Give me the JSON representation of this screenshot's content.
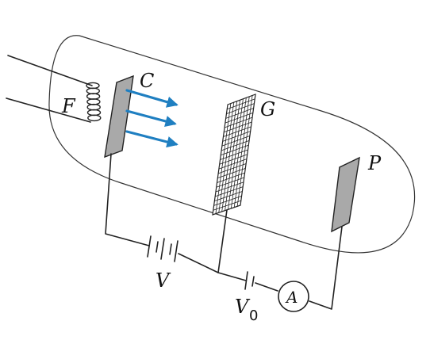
{
  "labels": {
    "filament": "F",
    "cathode": "C",
    "grid": "G",
    "plate": "P",
    "battery_main": "V",
    "battery_retard": "V",
    "battery_retard_subscript": "0",
    "ammeter": "A"
  },
  "colors": {
    "arrow": "#1f7fc1",
    "plate_fill": "#a9a9a9",
    "line": "#222222"
  },
  "icons": {
    "electron_beam": "arrow-right-icon",
    "ammeter": "ammeter-circle-icon",
    "battery": "battery-icon"
  }
}
